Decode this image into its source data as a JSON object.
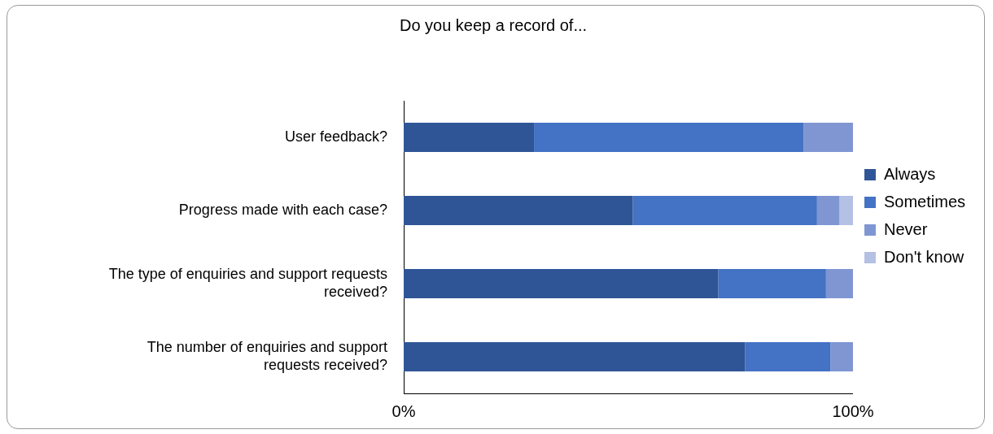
{
  "chart_data": {
    "type": "bar",
    "orientation": "horizontal",
    "stacked": true,
    "title": "Do you keep a record of...",
    "categories": [
      "User feedback?",
      "Progress made with each case?",
      "The type of enquiries and support requests received?",
      "The number of enquiries and support requests received?"
    ],
    "series": [
      {
        "name": "Always",
        "color": "#2f5597",
        "values": [
          29,
          51,
          70,
          76
        ]
      },
      {
        "name": "Sometimes",
        "color": "#4472c4",
        "values": [
          60,
          41,
          24,
          19
        ]
      },
      {
        "name": "Never",
        "color": "#7f96d2",
        "values": [
          11,
          5,
          6,
          5
        ]
      },
      {
        "name": "Don't know",
        "color": "#b4c0e4",
        "values": [
          null,
          3,
          null,
          null
        ]
      }
    ],
    "xlim": [
      0,
      100
    ],
    "xticks": [
      {
        "value": 0,
        "label": "0%"
      },
      {
        "value": 100,
        "label": "100%"
      }
    ],
    "legend": "right"
  }
}
